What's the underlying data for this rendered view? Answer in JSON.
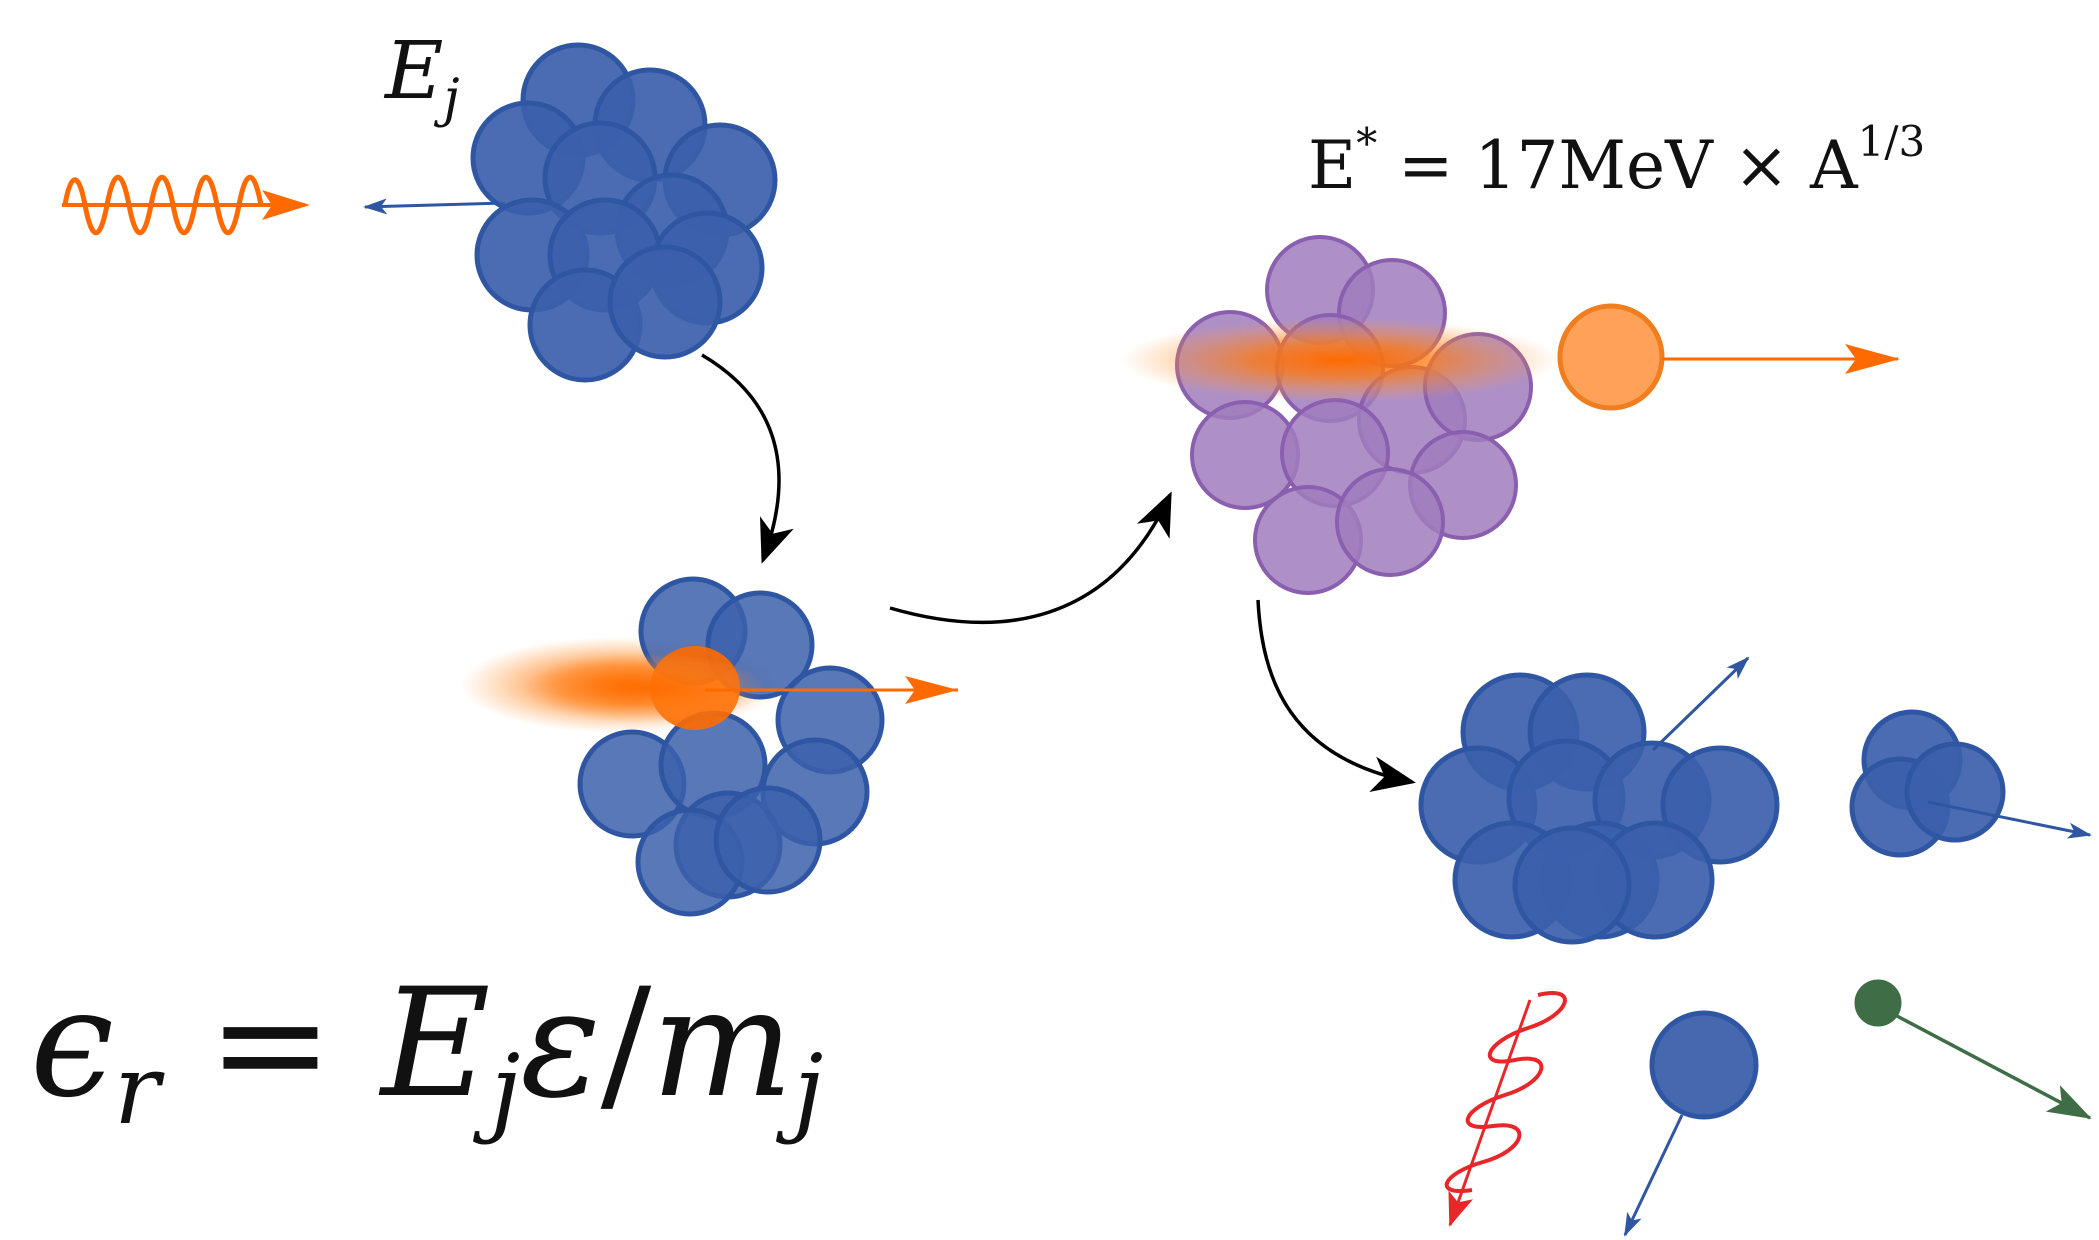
{
  "labels": {
    "ej": {
      "base": "E",
      "sub": "j"
    },
    "estar": {
      "base": "E",
      "star": "*",
      "rest": " = 17MeV × A",
      "exp": "1/3"
    },
    "formula": {
      "epsilon": "ϵ",
      "r": "r",
      "eq": " = ",
      "E": "E",
      "j1": "j",
      "vareps": "ε",
      "slash": "/",
      "m": "m",
      "j2": "j"
    }
  },
  "colors": {
    "nucleon_blue": "#3c60ab",
    "nucleon_blue_stroke": "#2f56a3",
    "nucleon_purple": "#a07cbd",
    "nucleon_purple_stroke": "#8b5fb0",
    "orange": "#ff6a00",
    "orange_ball": "#ffa158",
    "orange_ball_stroke": "#f07d1e",
    "red_wave": "#e8272a",
    "green": "#3f6d46",
    "arrow_black": "#000000"
  },
  "icons": [
    "gamma-wave-icon",
    "nucleus-icon",
    "curved-arrow-icon",
    "fragment-icon",
    "neutron-icon"
  ]
}
